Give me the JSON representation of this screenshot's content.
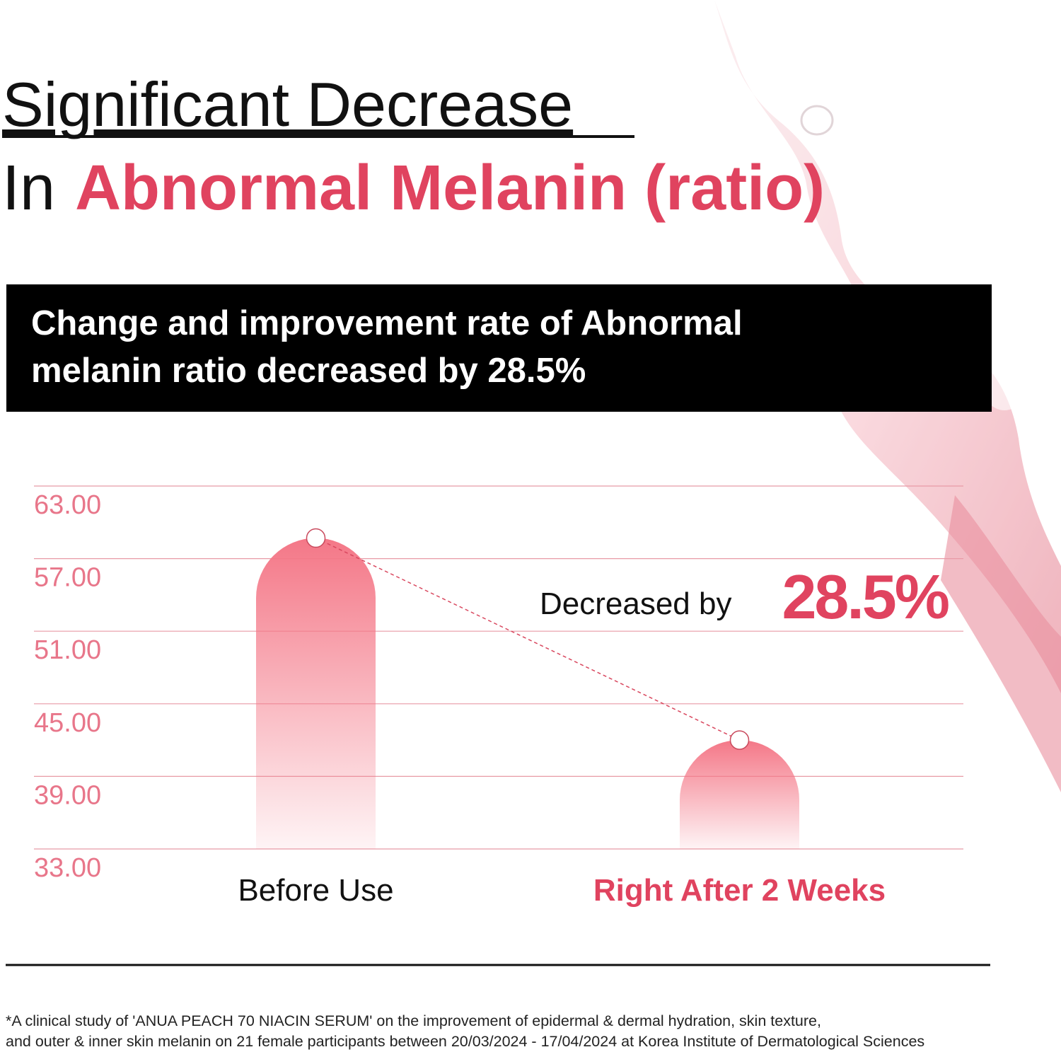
{
  "chart_data": {
    "type": "bar",
    "title": "Significant Decrease",
    "subtitle_prefix": "In",
    "subtitle_highlight": "Abnormal Melanin (ratio)",
    "box_text": [
      "Change and improvement rate of Abnormal",
      "melanin ratio decreased by 28.5%"
    ],
    "categories": [
      "Before Use",
      "Right After 2 Weeks"
    ],
    "category_label_colors": [
      "#111111",
      "#e0435f"
    ],
    "values": [
      58.7,
      42
    ],
    "color": "#f47787",
    "accent_color": "#e0435f",
    "tick_label_color": "#e8768a",
    "ylim": [
      33,
      63
    ],
    "yticks": [
      {
        "value": 33,
        "label": "33.00"
      },
      {
        "value": 39,
        "label": "39.00"
      },
      {
        "value": 45,
        "label": "45.00"
      },
      {
        "value": 51,
        "label": "51.00"
      },
      {
        "value": 57,
        "label": "57.00"
      },
      {
        "value": 63,
        "label": "63.00"
      }
    ],
    "grid": true,
    "annotation": {
      "text": "Decreased by",
      "highlight": "28.5%"
    },
    "footnote": [
      "*A clinical study of 'ANUA PEACH 70 NIACIN SERUM' on the improvement of epidermal & dermal hydration, skin texture,",
      "and outer & inner skin melanin on 21 female participants between 20/03/2024 - 17/04/2024 at Korea Institute of Dermatological Sciences"
    ]
  }
}
